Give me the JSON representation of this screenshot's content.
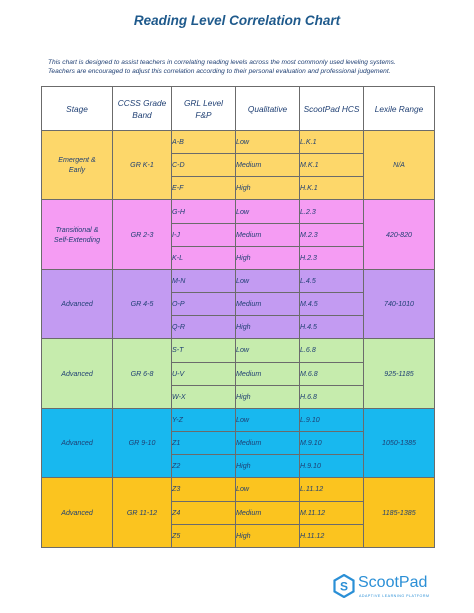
{
  "title": "Reading Level Correlation Chart",
  "intro": {
    "line1": "This chart is designed to assist teachers in correlating reading levels across the most commonly used leveling systems.",
    "line2": "Teachers are encouraged to adjust this correlation according to their personal evaluation and professional judgement."
  },
  "headers": {
    "stage": "Stage",
    "ccss_line1": "CCSS Grade",
    "ccss_line2": "Band",
    "grl_line1": "GRL Level",
    "grl_line2": "F&P",
    "qualitative": "Qualitative",
    "hcs": "ScootPad HCS",
    "lexile": "Lexile Range"
  },
  "rows": [
    {
      "stage_line1": "Emergent &",
      "stage_line2": "Early",
      "band": "GR K-1",
      "lexile": "N/A",
      "color": "#fdd76a",
      "levels": [
        {
          "grl": "A-B",
          "qual": "Low",
          "hcs": "L.K.1"
        },
        {
          "grl": "C-D",
          "qual": "Medium",
          "hcs": "M.K.1"
        },
        {
          "grl": "E-F",
          "qual": "High",
          "hcs": "H.K.1"
        }
      ]
    },
    {
      "stage_line1": "Transitional &",
      "stage_line2": "Self-Extending",
      "band": "GR 2-3",
      "lexile": "420-820",
      "color": "#f59cf3",
      "levels": [
        {
          "grl": "G-H",
          "qual": "Low",
          "hcs": "L.2.3"
        },
        {
          "grl": "I-J",
          "qual": "Medium",
          "hcs": "M.2.3"
        },
        {
          "grl": "K-L",
          "qual": "High",
          "hcs": "H.2.3"
        }
      ]
    },
    {
      "stage_line1": "Advanced",
      "stage_line2": "",
      "band": "GR 4-5",
      "lexile": "740-1010",
      "color": "#c39bf2",
      "levels": [
        {
          "grl": "M-N",
          "qual": "Low",
          "hcs": "L.4.5"
        },
        {
          "grl": "O-P",
          "qual": "Medium",
          "hcs": "M.4.5"
        },
        {
          "grl": "Q-R",
          "qual": "High",
          "hcs": "H.4.5"
        }
      ]
    },
    {
      "stage_line1": "Advanced",
      "stage_line2": "",
      "band": "GR 6-8",
      "lexile": "925-1185",
      "color": "#c6ecad",
      "levels": [
        {
          "grl": "S-T",
          "qual": "Low",
          "hcs": "L.6.8"
        },
        {
          "grl": "U-V",
          "qual": "Medium",
          "hcs": "M.6.8"
        },
        {
          "grl": "W-X",
          "qual": "High",
          "hcs": "H.6.8"
        }
      ]
    },
    {
      "stage_line1": "Advanced",
      "stage_line2": "",
      "band": "GR 9-10",
      "lexile": "1050-1385",
      "color": "#18b8ef",
      "levels": [
        {
          "grl": "Y-Z",
          "qual": "Low",
          "hcs": "L.9.10"
        },
        {
          "grl": "Z1",
          "qual": "Medium",
          "hcs": "M.9.10"
        },
        {
          "grl": "Z2",
          "qual": "High",
          "hcs": "H.9.10"
        }
      ]
    },
    {
      "stage_line1": "Advanced",
      "stage_line2": "",
      "band": "GR 11-12",
      "lexile": "1185-1385",
      "color": "#fbc41f",
      "levels": [
        {
          "grl": "Z3",
          "qual": "Low",
          "hcs": "L.11.12"
        },
        {
          "grl": "Z4",
          "qual": "Medium",
          "hcs": "M.11.12"
        },
        {
          "grl": "Z5",
          "qual": "High",
          "hcs": "H.11.12"
        }
      ]
    }
  ],
  "logo": {
    "name": "ScootPad",
    "tagline": "ADAPTIVE LEARNING PLATFORM",
    "color": "#2a8fd6"
  }
}
